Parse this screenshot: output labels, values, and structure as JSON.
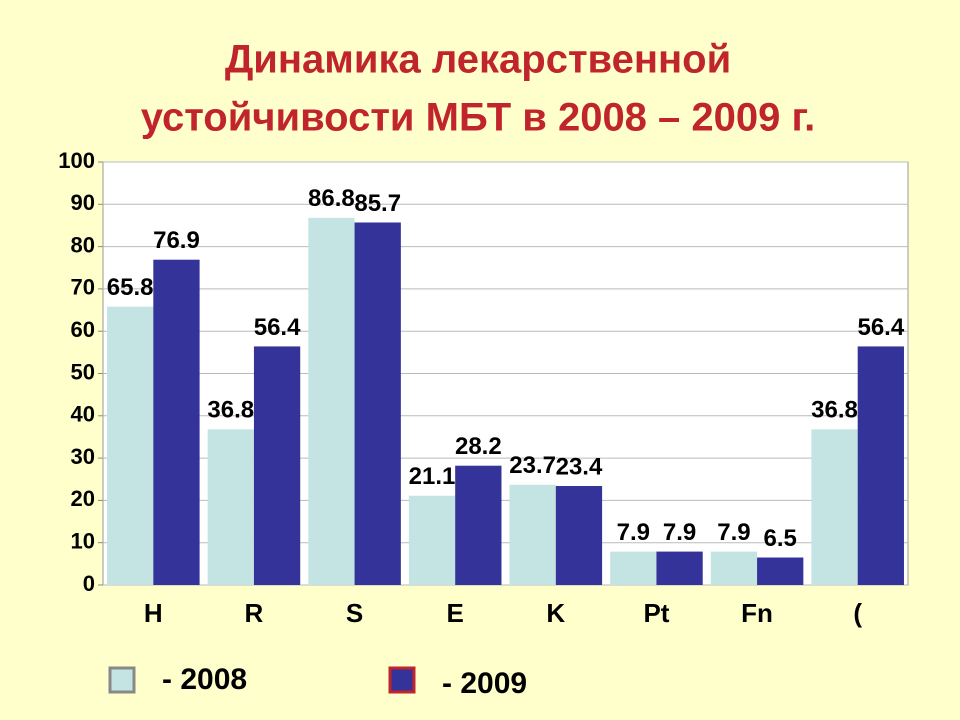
{
  "chart_data": {
    "type": "bar",
    "title": [
      "Динамика лекарственной",
      "устойчивости МБТ в 2008 – 2009 г."
    ],
    "categories": [
      "H",
      "R",
      "S",
      "E",
      "K",
      "Pt",
      "Fn",
      "("
    ],
    "series": [
      {
        "name": "- 2008",
        "color": "#c4e4e4",
        "values": [
          65.8,
          36.8,
          86.8,
          21.1,
          23.7,
          7.9,
          7.9,
          36.8
        ]
      },
      {
        "name": "- 2009",
        "color": "#333399",
        "values": [
          76.9,
          56.4,
          85.7,
          28.2,
          23.4,
          7.9,
          6.5,
          56.4
        ]
      }
    ],
    "ylim": [
      0,
      100
    ],
    "yticks": [
      0,
      10,
      20,
      30,
      40,
      50,
      60,
      70,
      80,
      90,
      100
    ],
    "grid": true
  }
}
